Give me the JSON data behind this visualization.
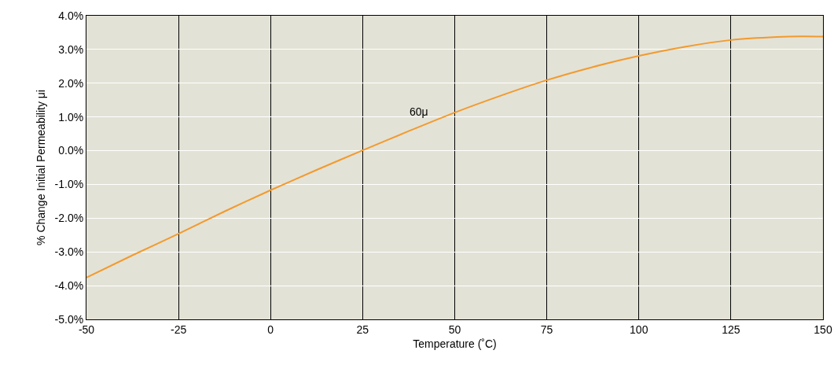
{
  "chart_data": {
    "type": "line",
    "xlabel": "Temperature (˚C)",
    "ylabel": "% Change Initial Permeability μi",
    "x": [
      -50,
      -37.5,
      -25,
      -12.5,
      0,
      12.5,
      25,
      37.5,
      50,
      62.5,
      75,
      87.5,
      100,
      112.5,
      125,
      137.5,
      145,
      150
    ],
    "series": [
      {
        "color": "#f29a2e",
        "values": [
          -3.76,
          -3.1,
          -2.46,
          -1.8,
          -1.17,
          -0.57,
          0.01,
          0.58,
          1.13,
          1.63,
          2.09,
          2.48,
          2.81,
          3.08,
          3.28,
          3.37,
          3.39,
          3.38
        ]
      }
    ],
    "xlim": [
      -50,
      150
    ],
    "xticks": [
      -50,
      -25,
      0,
      25,
      50,
      75,
      100,
      125,
      150
    ],
    "ylim": [
      -5,
      4
    ],
    "yticks": [
      {
        "value": -5,
        "label": "-5.0%"
      },
      {
        "value": -4,
        "label": "-4.0%"
      },
      {
        "value": -3,
        "label": "-3.0%"
      },
      {
        "value": -2,
        "label": "-2.0%"
      },
      {
        "value": -1,
        "label": "-1.0%"
      },
      {
        "value": 0,
        "label": "0.0%"
      },
      {
        "value": 1,
        "label": "1.0%"
      },
      {
        "value": 2,
        "label": "2.0%"
      },
      {
        "value": 3,
        "label": "3.0%"
      },
      {
        "value": 4,
        "label": "4.0%"
      }
    ],
    "annotations": [
      "60μ"
    ],
    "grid": true,
    "marker": "none",
    "line_style": "solid"
  }
}
